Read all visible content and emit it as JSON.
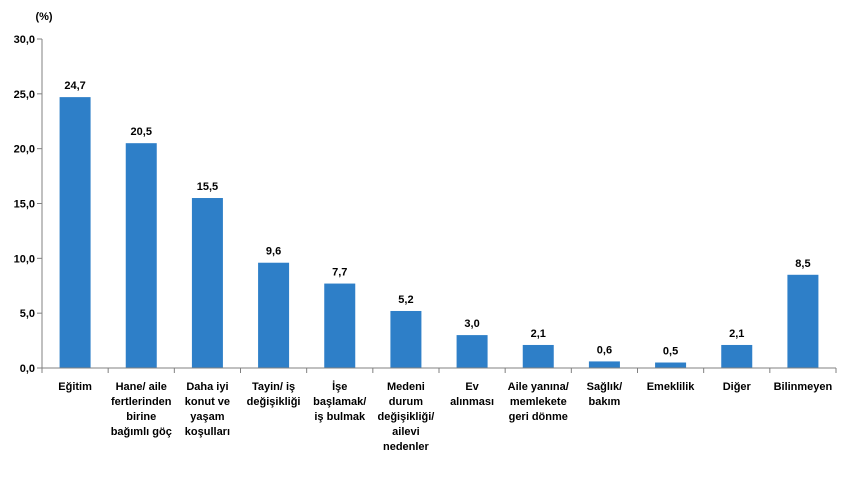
{
  "chart_data": {
    "type": "bar",
    "unit_label": "(%)",
    "categories": [
      [
        "Eğitim"
      ],
      [
        "Hane/ aile",
        "fertlerinden",
        "birine",
        "bağımlı göç"
      ],
      [
        "Daha iyi",
        "konut ve",
        "yaşam",
        "koşulları"
      ],
      [
        "Tayin/ iş",
        "değişikliği"
      ],
      [
        "İşe",
        "başlamak/",
        "iş bulmak"
      ],
      [
        "Medeni",
        "durum",
        "değişikliği/",
        "ailevi",
        "nedenler"
      ],
      [
        "Ev",
        "alınması"
      ],
      [
        "Aile yanına/",
        "memlekete",
        "geri dönme"
      ],
      [
        "Sağlık/",
        "bakım"
      ],
      [
        "Emeklilik"
      ],
      [
        "Diğer"
      ],
      [
        "Bilinmeyen"
      ]
    ],
    "values": [
      24.7,
      20.5,
      15.5,
      9.6,
      7.7,
      5.2,
      3.0,
      2.1,
      0.6,
      0.5,
      2.1,
      8.5
    ],
    "value_labels": [
      "24,7",
      "20,5",
      "15,5",
      "9,6",
      "7,7",
      "5,2",
      "3,0",
      "2,1",
      "0,6",
      "0,5",
      "2,1",
      "8,5"
    ],
    "ylim": [
      0,
      30
    ],
    "yticks": [
      "0,0",
      "5,0",
      "10,0",
      "15,0",
      "20,0",
      "25,0",
      "30,0"
    ],
    "bar_color": "#2e7fc8",
    "axis_color": "#808080",
    "grid": false,
    "legend": "none"
  }
}
